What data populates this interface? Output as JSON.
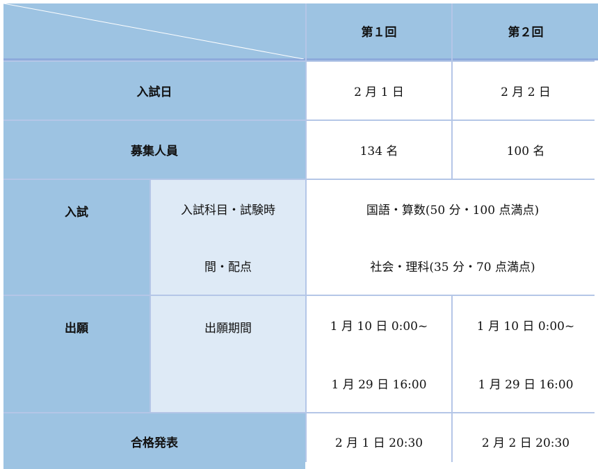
{
  "header": {
    "corner": "",
    "col1": "第１回",
    "col2": "第２回"
  },
  "rows": {
    "exam_date": {
      "label": "入試日",
      "r1": "2 月 1 日",
      "r2": "2 月 2 日"
    },
    "capacity": {
      "label": "募集人員",
      "r1": "134 名",
      "r2": "100 名"
    },
    "exam": {
      "label": "入試",
      "sub_line1": "入試科目・試験時",
      "sub_line2": "間・配点",
      "line1": "国語・算数(50 分・100 点満点)",
      "line2": "社会・理科(35 分・70 点満点)"
    },
    "application": {
      "label": "出願",
      "sub": "出願期間",
      "r1_line1": "1 月 10 日 0:00~",
      "r1_line2": "1 月 29 日 16:00",
      "r2_line1": "1 月 10 日 0:00~",
      "r2_line2": "1 月 29 日 16:00"
    },
    "announcement": {
      "label": "合格発表",
      "r1": "2 月 1 日 20:30",
      "r2": "2 月 2 日 20:30"
    }
  },
  "colors": {
    "header_bg": "#9DC3E2",
    "sub_bg": "#DEEAF6",
    "border": "#B4C6E7"
  }
}
